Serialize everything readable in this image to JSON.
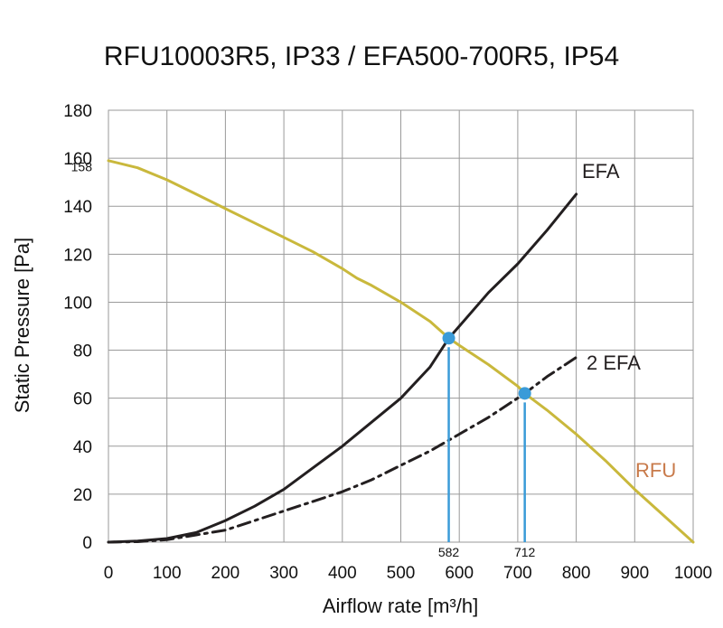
{
  "chart_data": {
    "type": "line",
    "title": "RFU10003R5, IP33 / EFA500-700R5, IP54",
    "xlabel": "Airflow rate [m³/h]",
    "ylabel": "Static Pressure [Pa]",
    "xlim": [
      0,
      1000
    ],
    "ylim": [
      0,
      180
    ],
    "xticks": [
      0,
      100,
      200,
      300,
      400,
      500,
      600,
      700,
      800,
      900,
      1000
    ],
    "yticks": [
      0,
      20,
      40,
      60,
      80,
      100,
      120,
      140,
      160,
      180
    ],
    "grid": true,
    "extra_ytick": {
      "value": 158,
      "label": "158"
    },
    "series": [
      {
        "name": "RFU",
        "color": "#c9b83c",
        "label_color": "#c87a4a",
        "style": "solid",
        "x": [
          0,
          50,
          100,
          150,
          200,
          250,
          300,
          350,
          400,
          425,
          450,
          500,
          550,
          582,
          600,
          650,
          700,
          712,
          750,
          800,
          850,
          900,
          950,
          1000
        ],
        "y": [
          159,
          156,
          151,
          145,
          139,
          133,
          127,
          121,
          114,
          110,
          107,
          100,
          92,
          85,
          82,
          74,
          65,
          62,
          55,
          45,
          34,
          22,
          11,
          0
        ]
      },
      {
        "name": "EFA",
        "color": "#231f20",
        "style": "solid",
        "x": [
          0,
          50,
          100,
          150,
          200,
          250,
          300,
          350,
          400,
          450,
          500,
          550,
          582,
          600,
          650,
          700,
          750,
          800
        ],
        "y": [
          0,
          0.5,
          1.5,
          4,
          9,
          15,
          22,
          31,
          40,
          50,
          60,
          73,
          85,
          90,
          104,
          116,
          130,
          145
        ]
      },
      {
        "name": "2 EFA",
        "color": "#231f20",
        "style": "dashdot",
        "x": [
          0,
          50,
          100,
          150,
          200,
          250,
          300,
          350,
          400,
          450,
          500,
          550,
          600,
          650,
          712,
          750,
          800
        ],
        "y": [
          0,
          0.2,
          1,
          3,
          5,
          9,
          13,
          17,
          21,
          26,
          32,
          38,
          45,
          52,
          62,
          69,
          77
        ]
      }
    ],
    "operating_points": [
      {
        "x": 582,
        "y": 85,
        "label": "582",
        "color": "#3a9bd8"
      },
      {
        "x": 712,
        "y": 62,
        "label": "712",
        "color": "#3a9bd8"
      }
    ]
  }
}
